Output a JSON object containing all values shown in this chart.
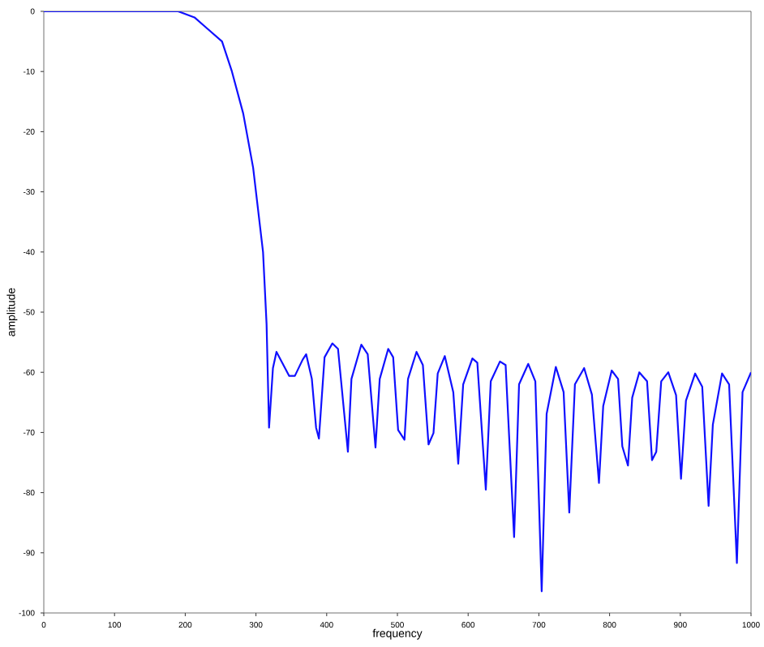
{
  "chart_data": {
    "type": "line",
    "xlabel": "frequency",
    "ylabel": "amplitude",
    "xlim": [
      0,
      1000
    ],
    "ylim": [
      -100,
      0
    ],
    "xticks": [
      0,
      100,
      200,
      300,
      400,
      500,
      600,
      700,
      800,
      900,
      1000
    ],
    "yticks": [
      -100,
      -90,
      -80,
      -70,
      -60,
      -50,
      -40,
      -30,
      -20,
      -10,
      0
    ],
    "grid": false,
    "marker": "none",
    "line_style": "solid",
    "series": [
      {
        "color": "#1010ff",
        "x": [
          0,
          190,
          213,
          252,
          266,
          282,
          296,
          310,
          315,
          318.5,
          324,
          329,
          347,
          355,
          366,
          371,
          379,
          385,
          389,
          397,
          408,
          416,
          430,
          435,
          449,
          458,
          469,
          475,
          487,
          494,
          501,
          510,
          515,
          527,
          536,
          544,
          551,
          557,
          567,
          579,
          586,
          593,
          606,
          613,
          625,
          632,
          645,
          653,
          665,
          672,
          685,
          695,
          704,
          711,
          724,
          735,
          743,
          751,
          764,
          775,
          785,
          791,
          803,
          812,
          818,
          826,
          832,
          842,
          853,
          860,
          866,
          873,
          883,
          894,
          901,
          908,
          921,
          931,
          940,
          946,
          959,
          969,
          980,
          988,
          1000
        ],
        "values": [
          0,
          0,
          -1,
          -5,
          -10,
          -17,
          -26,
          -40,
          -52,
          -69.2,
          -59.3,
          -56.6,
          -60.6,
          -60.6,
          -57.9,
          -57.0,
          -61.1,
          -69.2,
          -71,
          -57.5,
          -55.2,
          -56.1,
          -73.2,
          -61.1,
          -55.4,
          -57.0,
          -72.5,
          -61.1,
          -56.1,
          -57.5,
          -69.6,
          -71.2,
          -61.1,
          -56.6,
          -58.8,
          -72.0,
          -70.1,
          -60.2,
          -57.3,
          -63.3,
          -75.2,
          -62.0,
          -57.7,
          -58.4,
          -79.5,
          -61.5,
          -58.2,
          -58.8,
          -87.4,
          -62.0,
          -58.6,
          -61.5,
          -96.4,
          -66.9,
          -59.1,
          -63.3,
          -83.3,
          -62.0,
          -59.3,
          -63.7,
          -78.4,
          -65.6,
          -59.7,
          -61.1,
          -72.3,
          -75.5,
          -64.2,
          -60.0,
          -61.5,
          -74.6,
          -73.2,
          -61.5,
          -60.0,
          -63.8,
          -77.7,
          -64.7,
          -60.2,
          -62.4,
          -82.2,
          -68.7,
          -60.2,
          -62.0,
          -91.7,
          -63.3,
          -60.0
        ]
      }
    ]
  }
}
